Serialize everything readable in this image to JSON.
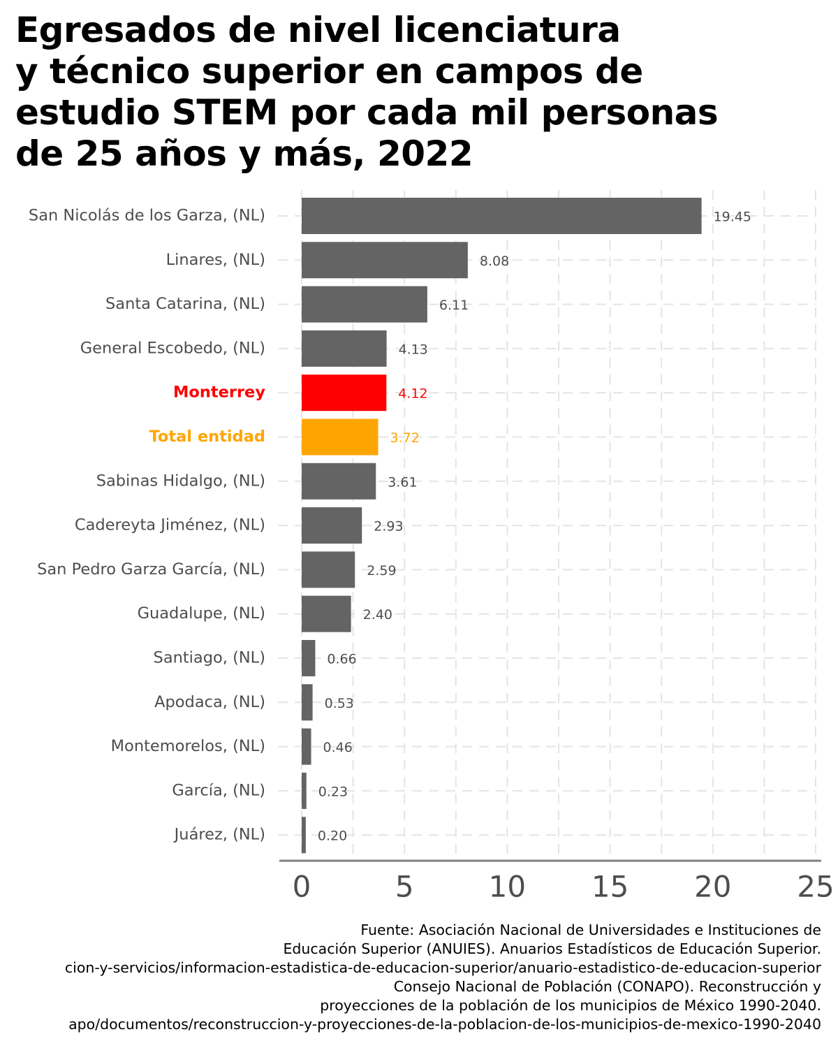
{
  "chart_data": {
    "type": "bar",
    "orientation": "horizontal",
    "title_lines": [
      "Egresados de nivel licenciatura",
      "y técnico superior en campos de",
      "estudio STEM por cada mil personas",
      "de 25 años y más, 2022"
    ],
    "categories": [
      "San Nicolás de los Garza, (NL)",
      "Linares, (NL)",
      "Santa Catarina, (NL)",
      "General Escobedo, (NL)",
      "Monterrey",
      "Total entidad",
      "Sabinas Hidalgo, (NL)",
      "Cadereyta Jiménez, (NL)",
      "San Pedro Garza García, (NL)",
      "Guadalupe, (NL)",
      "Santiago, (NL)",
      "Apodaca, (NL)",
      "Montemorelos, (NL)",
      "García, (NL)",
      "Juárez, (NL)"
    ],
    "values": [
      19.45,
      8.08,
      6.11,
      4.13,
      4.12,
      3.72,
      3.61,
      2.93,
      2.59,
      2.4,
      0.66,
      0.53,
      0.46,
      0.23,
      0.2
    ],
    "value_labels": [
      "19.45",
      "8.08",
      "6.11",
      "4.13",
      "4.12",
      "3.72",
      "3.61",
      "2.93",
      "2.59",
      "2.40",
      "0.66",
      "0.53",
      "0.46",
      "0.23",
      "0.20"
    ],
    "xlim": [
      0,
      25
    ],
    "x_ticks": [
      0,
      5,
      10,
      15,
      20,
      25
    ],
    "x_tick_labels": [
      "0",
      "5",
      "10",
      "15",
      "20",
      "25"
    ],
    "xlabel": "",
    "ylabel": "",
    "grid": true,
    "grid_style": "dashed",
    "colors": {
      "default": "#646464",
      "default_label": "#4d4d4d",
      "highlight_city": "#ff0000",
      "highlight_state": "#ffa500",
      "grid": "#e4e4e4",
      "axis": "#7f7f7f",
      "tick_label": "#4d4d4d"
    },
    "highlights": {
      "Monterrey": "highlight_city",
      "Total entidad": "highlight_state"
    }
  },
  "source_lines": [
    "Fuente: Asociación Nacional de Universidades e Instituciones de",
    "Educación Superior (ANUIES). Anuarios Estadísticos de Educación Superior.",
    "cion-y-servicios/informacion-estadistica-de-educacion-superior/anuario-estadistico-de-educacion-superior",
    "Consejo Nacional de Población (CONAPO). Reconstrucción y",
    "proyecciones de la población de los municipios de México 1990-2040.",
    "apo/documentos/reconstruccion-y-proyecciones-de-la-poblacion-de-los-municipios-de-mexico-1990-2040"
  ]
}
